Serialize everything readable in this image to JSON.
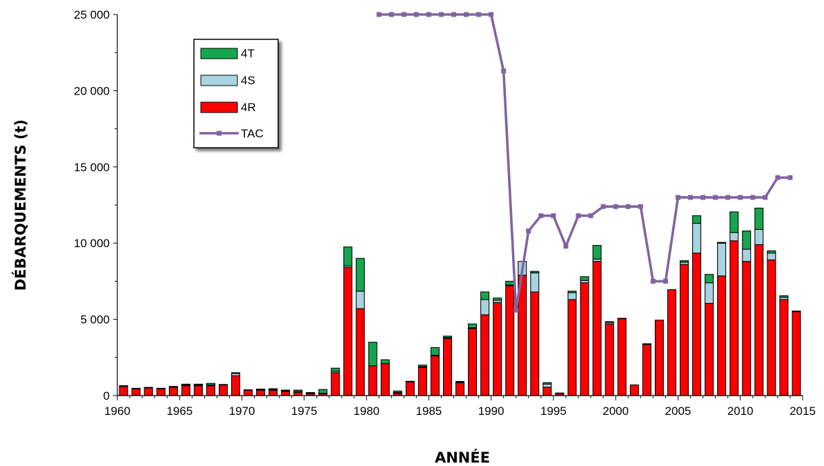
{
  "chart_data": {
    "type": "bar",
    "stacked": true,
    "xlabel": "ANNÉE",
    "ylabel": "DÉBARQUEMENTS (t)",
    "xlim": [
      1960,
      2015
    ],
    "ylim": [
      0,
      25000
    ],
    "x_ticks": [
      "1960",
      "1965",
      "1970",
      "1975",
      "1980",
      "1985",
      "1990",
      "1995",
      "2000",
      "2005",
      "2010",
      "2015"
    ],
    "y_ticks": [
      "0",
      "5 000",
      "10 000",
      "15 000",
      "20 000",
      "25 000"
    ],
    "grid": false,
    "legend_position": "top-left",
    "years": [
      1960,
      1961,
      1962,
      1963,
      1964,
      1965,
      1966,
      1967,
      1968,
      1969,
      1970,
      1971,
      1972,
      1973,
      1974,
      1975,
      1976,
      1977,
      1978,
      1979,
      1980,
      1981,
      1982,
      1983,
      1984,
      1985,
      1986,
      1987,
      1988,
      1989,
      1990,
      1991,
      1992,
      1993,
      1994,
      1995,
      1996,
      1997,
      1998,
      1999,
      2000,
      2001,
      2002,
      2003,
      2004,
      2005,
      2006,
      2007,
      2008,
      2009,
      2010,
      2011,
      2012,
      2013,
      2014
    ],
    "series": [
      {
        "name": "4R",
        "color": "#ff0000",
        "values": [
          600,
          450,
          500,
          450,
          550,
          650,
          650,
          650,
          700,
          1300,
          350,
          350,
          350,
          280,
          220,
          130,
          130,
          1500,
          8400,
          5700,
          1950,
          2100,
          150,
          900,
          1850,
          2600,
          3750,
          850,
          4400,
          5300,
          6100,
          7200,
          7900,
          6800,
          550,
          120,
          6300,
          7400,
          8800,
          4700,
          5050,
          700,
          3350,
          4950,
          6950,
          8600,
          9350,
          6050,
          7850,
          10150,
          8800,
          9900,
          8900,
          6300,
          5500
        ]
      },
      {
        "name": "4S",
        "color": "#a8d3e0",
        "values": [
          50,
          30,
          40,
          30,
          50,
          50,
          50,
          50,
          30,
          150,
          30,
          30,
          50,
          30,
          40,
          20,
          20,
          100,
          100,
          1150,
          0,
          0,
          50,
          40,
          50,
          50,
          50,
          30,
          50,
          1000,
          150,
          50,
          900,
          1250,
          200,
          50,
          450,
          150,
          150,
          100,
          20,
          0,
          50,
          0,
          0,
          150,
          1950,
          1350,
          2150,
          550,
          800,
          1000,
          450,
          150,
          50
        ]
      },
      {
        "name": "4T",
        "color": "#17a54f",
        "values": [
          0,
          0,
          0,
          0,
          0,
          50,
          50,
          100,
          0,
          50,
          0,
          50,
          50,
          50,
          100,
          50,
          250,
          200,
          1250,
          2150,
          1550,
          250,
          100,
          0,
          100,
          500,
          100,
          50,
          250,
          500,
          150,
          250,
          0,
          100,
          100,
          0,
          100,
          250,
          900,
          50,
          0,
          0,
          0,
          0,
          0,
          100,
          500,
          550,
          50,
          1350,
          1200,
          1400,
          150,
          100,
          0
        ]
      }
    ],
    "line_series": [
      {
        "name": "TAC",
        "color": "#8064a2",
        "x": [
          1981,
          1982,
          1983,
          1984,
          1985,
          1986,
          1987,
          1988,
          1989,
          1990,
          1991,
          1992,
          1993,
          1994,
          1995,
          1996,
          1997,
          1998,
          1999,
          2000,
          2001,
          2002,
          2003,
          2004,
          2005,
          2006,
          2007,
          2008,
          2009,
          2010,
          2011,
          2012,
          2013,
          2014
        ],
        "values": [
          25000,
          25000,
          25000,
          25000,
          25000,
          25000,
          25000,
          25000,
          25000,
          25000,
          21300,
          5600,
          10800,
          11800,
          11800,
          9800,
          11800,
          11800,
          12400,
          12400,
          12400,
          12400,
          7500,
          7500,
          13000,
          13000,
          13000,
          13000,
          13000,
          13000,
          13000,
          13000,
          14300,
          14300
        ]
      }
    ],
    "legend_items": [
      {
        "name": "4T",
        "color": "#17a54f",
        "kind": "box"
      },
      {
        "name": "4S",
        "color": "#a8d3e0",
        "kind": "box"
      },
      {
        "name": "4R",
        "color": "#ff0000",
        "kind": "box"
      },
      {
        "name": "TAC",
        "color": "#8064a2",
        "kind": "line"
      }
    ]
  }
}
